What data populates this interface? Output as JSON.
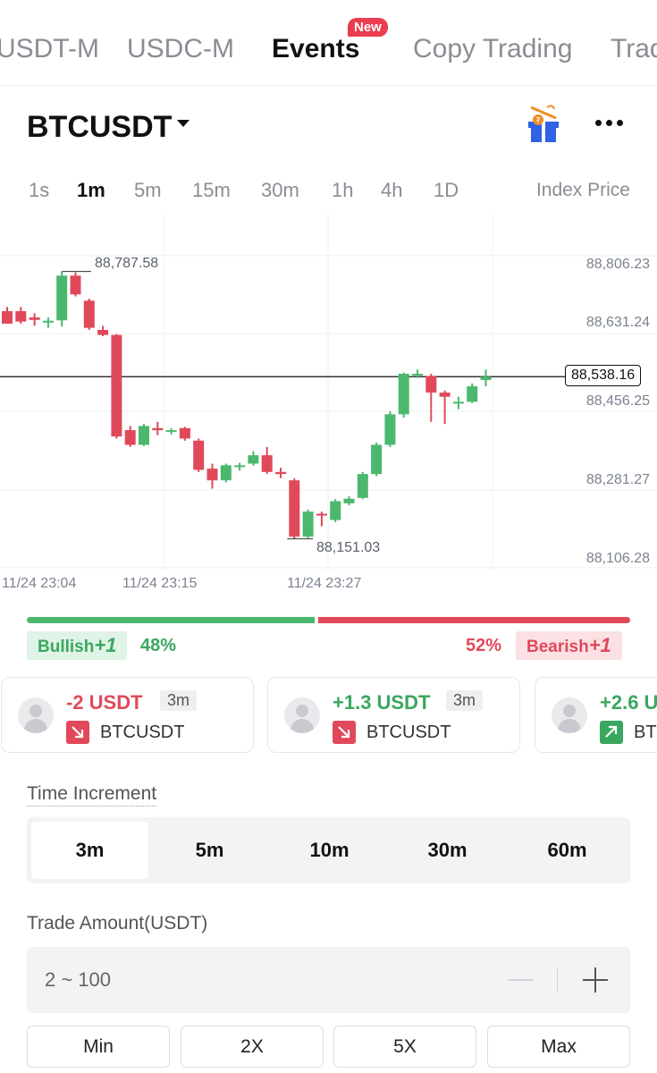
{
  "tabs": [
    {
      "label": "USDT-M",
      "active": false
    },
    {
      "label": "USDC-M",
      "active": false
    },
    {
      "label": "Events",
      "active": true,
      "badge": "New"
    },
    {
      "label": "Copy Trading",
      "active": false
    },
    {
      "label": "Trad",
      "active": false
    }
  ],
  "header": {
    "pair": "BTCUSDT",
    "icons": [
      "chevron-down-icon",
      "gift-icon",
      "more-icon"
    ]
  },
  "intervals": {
    "items": [
      "1s",
      "1m",
      "5m",
      "15m",
      "30m",
      "1h",
      "4h",
      "1D"
    ],
    "active": "1m",
    "price_type": "Index Price"
  },
  "chart_data": {
    "type": "candlestick",
    "y_axis_labels": [
      "88,806.23",
      "88,631.24",
      "88,456.25",
      "88,281.27",
      "88,106.28"
    ],
    "y_axis_values": [
      88806.23,
      88631.24,
      88456.25,
      88281.27,
      88106.28
    ],
    "x_axis_labels": [
      "11/24 23:04",
      "11/24 23:15",
      "11/24 23:27"
    ],
    "current_price": "88,538.16",
    "current_price_value": 88538.16,
    "high_label": "88,787.58",
    "low_label": "88,151.03",
    "up_color": "#4bb86e",
    "down_color": "#e0495a",
    "grid": true,
    "candles": [
      {
        "o": 88695,
        "h": 88705,
        "l": 88665,
        "c": 88665
      },
      {
        "o": 88695,
        "h": 88705,
        "l": 88665,
        "c": 88670
      },
      {
        "o": 88680,
        "h": 88690,
        "l": 88660,
        "c": 88674
      },
      {
        "o": 88668,
        "h": 88680,
        "l": 88655,
        "c": 88672
      },
      {
        "o": 88673,
        "h": 88790,
        "l": 88658,
        "c": 88780
      },
      {
        "o": 88780,
        "h": 88788,
        "l": 88730,
        "c": 88735
      },
      {
        "o": 88720,
        "h": 88725,
        "l": 88650,
        "c": 88655
      },
      {
        "o": 88650,
        "h": 88660,
        "l": 88635,
        "c": 88638
      },
      {
        "o": 88638,
        "h": 88640,
        "l": 88390,
        "c": 88395
      },
      {
        "o": 88410,
        "h": 88420,
        "l": 88370,
        "c": 88375
      },
      {
        "o": 88375,
        "h": 88425,
        "l": 88372,
        "c": 88420
      },
      {
        "o": 88415,
        "h": 88430,
        "l": 88398,
        "c": 88410
      },
      {
        "o": 88408,
        "h": 88415,
        "l": 88400,
        "c": 88410
      },
      {
        "o": 88415,
        "h": 88418,
        "l": 88385,
        "c": 88390
      },
      {
        "o": 88385,
        "h": 88390,
        "l": 88310,
        "c": 88315
      },
      {
        "o": 88318,
        "h": 88330,
        "l": 88270,
        "c": 88290
      },
      {
        "o": 88290,
        "h": 88330,
        "l": 88285,
        "c": 88326
      },
      {
        "o": 88322,
        "h": 88332,
        "l": 88313,
        "c": 88326
      },
      {
        "o": 88330,
        "h": 88360,
        "l": 88325,
        "c": 88350
      },
      {
        "o": 88350,
        "h": 88370,
        "l": 88305,
        "c": 88310
      },
      {
        "o": 88310,
        "h": 88320,
        "l": 88295,
        "c": 88305
      },
      {
        "o": 88290,
        "h": 88295,
        "l": 88150,
        "c": 88155
      },
      {
        "o": 88155,
        "h": 88220,
        "l": 88151,
        "c": 88215
      },
      {
        "o": 88210,
        "h": 88215,
        "l": 88180,
        "c": 88208
      },
      {
        "o": 88195,
        "h": 88245,
        "l": 88190,
        "c": 88240
      },
      {
        "o": 88235,
        "h": 88252,
        "l": 88230,
        "c": 88246
      },
      {
        "o": 88248,
        "h": 88310,
        "l": 88245,
        "c": 88305
      },
      {
        "o": 88305,
        "h": 88380,
        "l": 88300,
        "c": 88375
      },
      {
        "o": 88375,
        "h": 88455,
        "l": 88370,
        "c": 88448
      },
      {
        "o": 88448,
        "h": 88548,
        "l": 88440,
        "c": 88545
      },
      {
        "o": 88542,
        "h": 88555,
        "l": 88535,
        "c": 88545
      },
      {
        "o": 88540,
        "h": 88545,
        "l": 88430,
        "c": 88500
      },
      {
        "o": 88500,
        "h": 88505,
        "l": 88425,
        "c": 88490
      },
      {
        "o": 88475,
        "h": 88490,
        "l": 88460,
        "c": 88478
      },
      {
        "o": 88478,
        "h": 88522,
        "l": 88475,
        "c": 88515
      },
      {
        "o": 88530,
        "h": 88555,
        "l": 88515,
        "c": 88538
      }
    ]
  },
  "sentiment": {
    "bullish_label": "Bullish",
    "bullish_mult": "+1",
    "bullish_pct": "48%",
    "bullish_share": 48,
    "bearish_label": "Bearish",
    "bearish_mult": "+1",
    "bearish_pct": "52%",
    "bearish_share": 52
  },
  "trades": [
    {
      "pnl": "-2 USDT",
      "duration": "3m",
      "symbol": "BTCUSDT",
      "direction": "down"
    },
    {
      "pnl": "+1.3 USDT",
      "duration": "3m",
      "symbol": "BTCUSDT",
      "direction": "down"
    },
    {
      "pnl": "+2.6 U",
      "duration": "",
      "symbol": "BT",
      "direction": "up"
    }
  ],
  "time_increment": {
    "label": "Time Increment",
    "options": [
      "3m",
      "5m",
      "10m",
      "30m",
      "60m"
    ],
    "selected": "3m"
  },
  "trade_amount": {
    "label": "Trade Amount(USDT)",
    "placeholder": "2 ~ 100",
    "value": "",
    "quick_buttons": [
      "Min",
      "2X",
      "5X",
      "Max"
    ]
  }
}
